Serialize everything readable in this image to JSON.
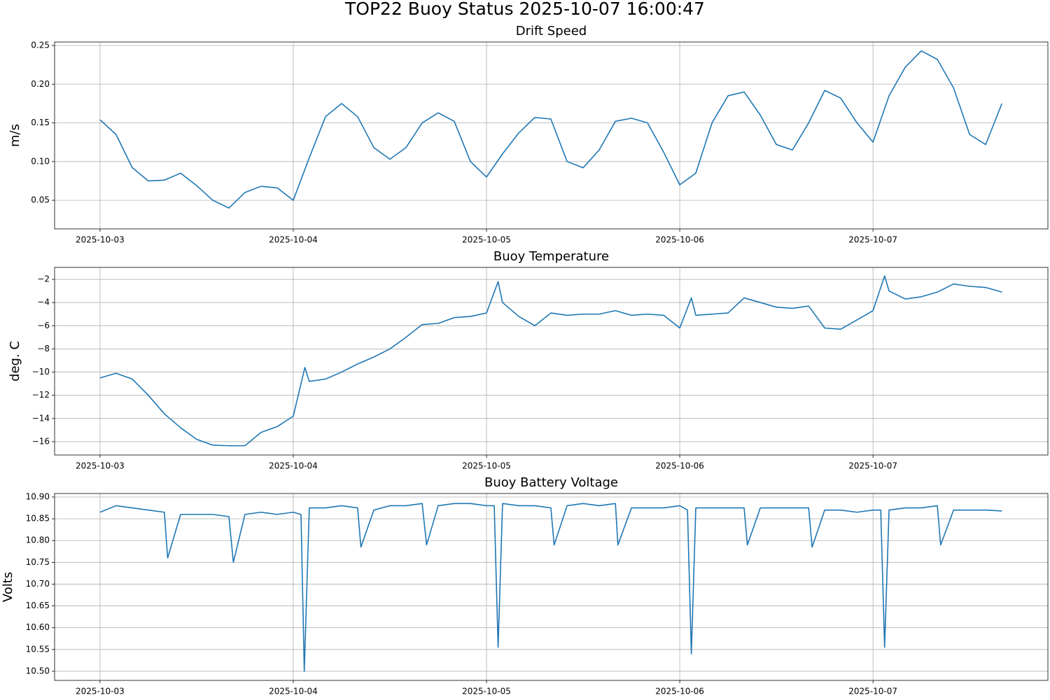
{
  "title": "TOP22 Buoy Status 2025-10-07 16:00:47",
  "chart_data": [
    {
      "type": "line",
      "title": "Drift Speed",
      "y_label": "m/s",
      "grid": true,
      "color": "#1f77b4",
      "xlim": [
        2.765,
        7.905
      ],
      "ylim": [
        0.013,
        0.2545
      ],
      "xticks": [
        {
          "value": 3,
          "label": "2025-10-03"
        },
        {
          "value": 4,
          "label": "2025-10-04"
        },
        {
          "value": 5,
          "label": "2025-10-05"
        },
        {
          "value": 6,
          "label": "2025-10-06"
        },
        {
          "value": 7,
          "label": "2025-10-07"
        }
      ],
      "yticks": [
        0.05,
        {
          "value": 0.1,
          "label": "0.10"
        },
        0.15,
        {
          "value": 0.2,
          "label": "0.20"
        },
        0.25
      ],
      "x": [
        3.0,
        3.083,
        3.167,
        3.25,
        3.333,
        3.417,
        3.5,
        3.583,
        3.667,
        3.75,
        3.833,
        3.917,
        4.0,
        4.083,
        4.167,
        4.25,
        4.333,
        4.417,
        4.5,
        4.583,
        4.667,
        4.75,
        4.833,
        4.917,
        5.0,
        5.083,
        5.167,
        5.25,
        5.333,
        5.417,
        5.5,
        5.583,
        5.667,
        5.75,
        5.833,
        5.917,
        6.0,
        6.083,
        6.167,
        6.25,
        6.333,
        6.417,
        6.5,
        6.583,
        6.667,
        6.75,
        6.833,
        6.917,
        7.0,
        7.083,
        7.167,
        7.25,
        7.333,
        7.417,
        7.5,
        7.583,
        7.667
      ],
      "values": [
        0.154,
        0.135,
        0.092,
        0.075,
        0.076,
        0.085,
        0.069,
        0.05,
        0.04,
        0.06,
        0.068,
        0.066,
        0.05,
        0.105,
        0.158,
        0.175,
        0.158,
        0.118,
        0.103,
        0.118,
        0.15,
        0.163,
        0.152,
        0.1,
        0.08,
        0.11,
        0.137,
        0.157,
        0.155,
        0.1,
        0.092,
        0.115,
        0.152,
        0.156,
        0.15,
        0.112,
        0.07,
        0.085,
        0.15,
        0.185,
        0.19,
        0.16,
        0.122,
        0.115,
        0.15,
        0.192,
        0.182,
        0.15,
        0.125,
        0.185,
        0.222,
        0.243,
        0.232,
        0.195,
        0.135,
        0.122,
        0.175
      ]
    },
    {
      "type": "line",
      "title": "Buoy Temperature",
      "y_label": "deg. C",
      "grid": true,
      "color": "#1f77b4",
      "xlim": [
        2.765,
        7.905
      ],
      "ylim": [
        -17.15,
        -0.97
      ],
      "xticks": [
        {
          "value": 3,
          "label": "2025-10-03"
        },
        {
          "value": 4,
          "label": "2025-10-04"
        },
        {
          "value": 5,
          "label": "2025-10-05"
        },
        {
          "value": 6,
          "label": "2025-10-06"
        },
        {
          "value": 7,
          "label": "2025-10-07"
        }
      ],
      "yticks": [
        {
          "value": -16,
          "label": "−16"
        },
        {
          "value": -14,
          "label": "−14"
        },
        {
          "value": -12,
          "label": "−12"
        },
        {
          "value": -10,
          "label": "−10"
        },
        {
          "value": -8,
          "label": "−8"
        },
        {
          "value": -6,
          "label": "−6"
        },
        {
          "value": -4,
          "label": "−4"
        },
        {
          "value": -2,
          "label": "−2"
        }
      ],
      "x": [
        3.0,
        3.083,
        3.167,
        3.25,
        3.333,
        3.417,
        3.5,
        3.583,
        3.667,
        3.75,
        3.833,
        3.917,
        4.0,
        4.06,
        4.083,
        4.167,
        4.25,
        4.333,
        4.417,
        4.5,
        4.583,
        4.667,
        4.75,
        4.833,
        4.917,
        5.0,
        5.06,
        5.083,
        5.167,
        5.25,
        5.333,
        5.417,
        5.5,
        5.583,
        5.667,
        5.75,
        5.833,
        5.917,
        6.0,
        6.06,
        6.083,
        6.167,
        6.25,
        6.333,
        6.417,
        6.5,
        6.583,
        6.667,
        6.75,
        6.833,
        6.917,
        7.0,
        7.06,
        7.083,
        7.167,
        7.25,
        7.333,
        7.417,
        7.5,
        7.583,
        7.667
      ],
      "values": [
        -10.5,
        -10.1,
        -10.6,
        -12.0,
        -13.6,
        -14.8,
        -15.8,
        -16.3,
        -16.35,
        -16.35,
        -15.2,
        -14.7,
        -13.8,
        -9.6,
        -10.8,
        -10.6,
        -10.0,
        -9.3,
        -8.7,
        -8.0,
        -7.0,
        -5.9,
        -5.8,
        -5.3,
        -5.2,
        -4.9,
        -2.2,
        -4.0,
        -5.2,
        -6.0,
        -4.9,
        -5.1,
        -5.0,
        -5.0,
        -4.7,
        -5.1,
        -5.0,
        -5.1,
        -6.2,
        -3.6,
        -5.1,
        -5.0,
        -4.9,
        -3.6,
        -4.0,
        -4.4,
        -4.5,
        -4.3,
        -6.2,
        -6.3,
        -5.5,
        -4.7,
        -1.7,
        -3.0,
        -3.7,
        -3.5,
        -3.1,
        -2.4,
        -2.6,
        -2.7,
        -3.1
      ]
    },
    {
      "type": "line",
      "title": "Buoy Battery Voltage",
      "y_label": "Volts",
      "grid": true,
      "color": "#1f77b4",
      "xlim": [
        2.765,
        7.905
      ],
      "ylim": [
        10.479,
        10.908
      ],
      "xticks": [
        {
          "value": 3,
          "label": "2025-10-03"
        },
        {
          "value": 4,
          "label": "2025-10-04"
        },
        {
          "value": 5,
          "label": "2025-10-05"
        },
        {
          "value": 6,
          "label": "2025-10-06"
        },
        {
          "value": 7,
          "label": "2025-10-07"
        }
      ],
      "yticks": [
        {
          "value": 10.5,
          "label": "10.50"
        },
        10.55,
        {
          "value": 10.6,
          "label": "10.60"
        },
        10.65,
        {
          "value": 10.7,
          "label": "10.70"
        },
        10.75,
        {
          "value": 10.8,
          "label": "10.80"
        },
        10.85,
        {
          "value": 10.9,
          "label": "10.90"
        }
      ],
      "x": [
        3.0,
        3.083,
        3.167,
        3.25,
        3.333,
        3.35,
        3.417,
        3.5,
        3.583,
        3.667,
        3.69,
        3.75,
        3.833,
        3.917,
        4.0,
        4.04,
        4.057,
        4.083,
        4.167,
        4.25,
        4.333,
        4.35,
        4.417,
        4.5,
        4.583,
        4.667,
        4.69,
        4.75,
        4.833,
        4.917,
        5.0,
        5.04,
        5.06,
        5.083,
        5.167,
        5.25,
        5.333,
        5.35,
        5.417,
        5.5,
        5.583,
        5.667,
        5.68,
        5.75,
        5.833,
        5.917,
        6.0,
        6.04,
        6.06,
        6.083,
        6.167,
        6.25,
        6.333,
        6.35,
        6.417,
        6.5,
        6.583,
        6.667,
        6.685,
        6.75,
        6.833,
        6.917,
        7.0,
        7.04,
        7.06,
        7.083,
        7.167,
        7.25,
        7.333,
        7.35,
        7.417,
        7.5,
        7.583,
        7.667
      ],
      "values": [
        10.865,
        10.88,
        10.875,
        10.87,
        10.865,
        10.76,
        10.86,
        10.86,
        10.86,
        10.855,
        10.75,
        10.86,
        10.865,
        10.86,
        10.865,
        10.86,
        10.5,
        10.875,
        10.875,
        10.88,
        10.875,
        10.785,
        10.87,
        10.88,
        10.88,
        10.885,
        10.79,
        10.88,
        10.885,
        10.885,
        10.88,
        10.88,
        10.555,
        10.885,
        10.88,
        10.88,
        10.875,
        10.79,
        10.88,
        10.885,
        10.88,
        10.885,
        10.79,
        10.875,
        10.875,
        10.875,
        10.88,
        10.87,
        10.54,
        10.875,
        10.875,
        10.875,
        10.875,
        10.79,
        10.875,
        10.875,
        10.875,
        10.875,
        10.785,
        10.87,
        10.87,
        10.865,
        10.87,
        10.87,
        10.555,
        10.87,
        10.875,
        10.875,
        10.88,
        10.79,
        10.87,
        10.87,
        10.87,
        10.868
      ]
    }
  ]
}
